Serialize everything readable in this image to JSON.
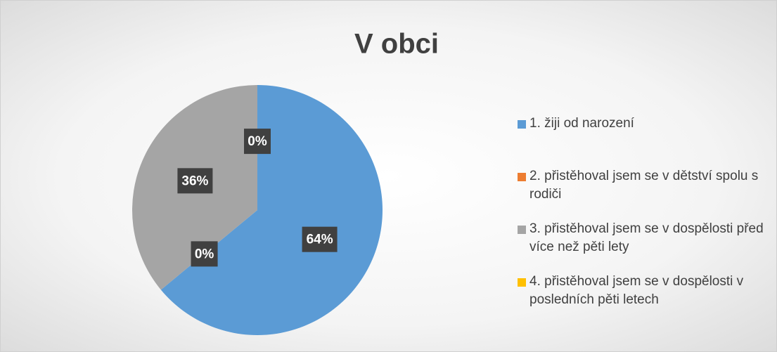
{
  "chart_data": {
    "type": "pie",
    "title": "V obci",
    "categories": [
      "1. žiji od narození",
      "2. přistěhoval jsem se v dětství spolu s rodiči",
      "3. přistěhoval jsem se v dospělosti před více než pěti lety",
      "4. přistěhoval jsem se v dospělosti v posledních pěti letech"
    ],
    "values": [
      64,
      0,
      36,
      0
    ],
    "value_labels": [
      "64%",
      "0%",
      "36%",
      "0%"
    ],
    "colors": [
      "#5b9bd5",
      "#ed7d31",
      "#a5a5a5",
      "#ffc000"
    ],
    "legend": "right"
  }
}
